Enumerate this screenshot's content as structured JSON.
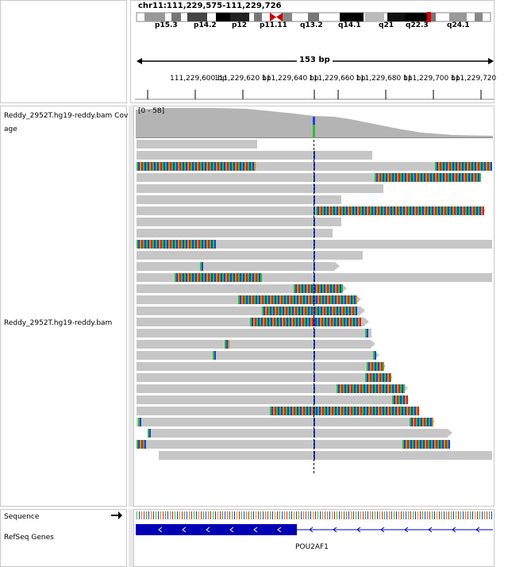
{
  "header": {
    "locus": "chr11:111,229,575-111,229,726",
    "span_label": "153 bp",
    "bands": [
      "p15.3",
      "p14.2",
      "p12",
      "p11.11",
      "q13.2",
      "q14.1",
      "q21",
      "q22.3",
      "q24.1"
    ],
    "positions": [
      "111,229,600 bp",
      "111,229,620 bp",
      "111,229,640 bp",
      "111,229,660 bp",
      "111,229,680 bp",
      "111,229,700 bp",
      "111,229,720"
    ]
  },
  "tracks": {
    "coverage_name": "Reddy_2952T.hg19-reddy.bam Coverage",
    "coverage_name_part1": "Reddy_2952T.hg19-reddy.bam Cov",
    "coverage_name_part2": "age",
    "coverage_range": "[0 - 58]",
    "alignment_name": "Reddy_2952T.hg19-reddy.bam",
    "sequence_name": "Sequence",
    "genes_name": "RefSeq Genes",
    "gene_label": "POU2AF1"
  },
  "colors": {
    "read_gray": "#c6c6c6",
    "coverage_gray": "#b4b4b4",
    "mismatch_A": "#2fbf2f",
    "mismatch_C": "#2040e0",
    "mismatch_G": "#d18b1a",
    "mismatch_T": "#e02020",
    "gene_blue": "#0000b4",
    "centromere_red": "#d00000"
  },
  "icons": {
    "strand_arrow": "arrow-right-icon",
    "gene_direction": "chevron-left-icon"
  }
}
